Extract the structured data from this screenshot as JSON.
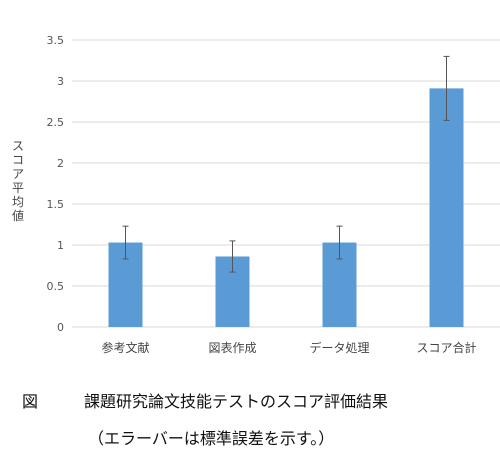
{
  "chart_data": {
    "type": "bar",
    "categories": [
      "参考文献",
      "図表作成",
      "データ処理",
      "スコア合計"
    ],
    "values": [
      1.03,
      0.86,
      1.03,
      2.91
    ],
    "errors": [
      0.2,
      0.19,
      0.2,
      0.39
    ],
    "ylabel": "スコア平均値",
    "ylim": [
      0,
      3.5
    ],
    "yticks": [
      "0",
      "0.5",
      "1",
      "1.5",
      "2",
      "2.5",
      "3",
      "3.5"
    ],
    "grid": true,
    "bar_color": "#5b9bd5",
    "grid_color": "#d9d9d9",
    "error_color": "#555555"
  },
  "caption": {
    "label": "図",
    "title": "課題研究論文技能テストのスコア評価結果",
    "note": "（エラーバーは標準誤差を示す。）"
  }
}
